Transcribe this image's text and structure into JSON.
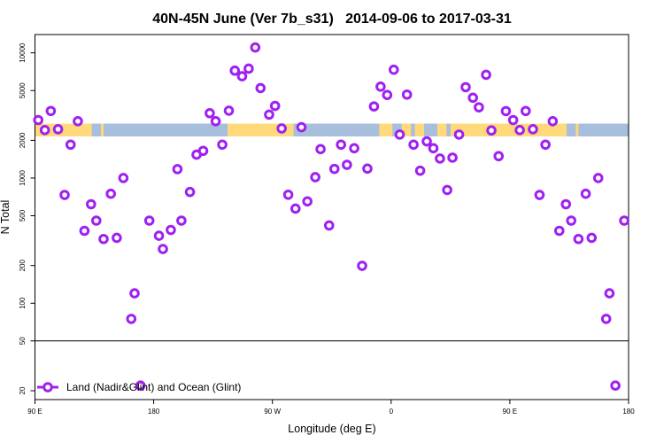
{
  "chart_data": {
    "type": "scatter",
    "title": "40N-45N June (Ver 7b_s31)   2014-09-06 to 2017-03-31",
    "xlabel": "Longitude (deg E)",
    "ylabel": "N Total",
    "xlim": [
      90,
      540
    ],
    "x_wrap_period": 360,
    "x_wrap_note": "points with longitude below 180 are repeated at longitude+360",
    "ylim": [
      17,
      14000
    ],
    "yscale": "log",
    "grid": false,
    "reference_line_y": 50,
    "xticks": [
      {
        "value": 90,
        "label": "90 E"
      },
      {
        "value": 180,
        "label": "180"
      },
      {
        "value": 270,
        "label": "90 W"
      },
      {
        "value": 360,
        "label": "0"
      },
      {
        "value": 450,
        "label": "90 E"
      },
      {
        "value": 540,
        "label": "180"
      }
    ],
    "yticks": [
      {
        "value": 10000,
        "label": "10000"
      },
      {
        "value": 5000,
        "label": "5000"
      },
      {
        "value": 2000,
        "label": "2000"
      },
      {
        "value": 1000,
        "label": "1000"
      },
      {
        "value": 500,
        "label": "500"
      },
      {
        "value": 200,
        "label": "200"
      },
      {
        "value": 100,
        "label": "100"
      },
      {
        "value": 50,
        "label": "50"
      },
      {
        "value": 20,
        "label": "20"
      }
    ],
    "legend": {
      "position": "bottom-left",
      "label": "Land (Nadir&Glint) and Ocean (Glint)"
    },
    "series_color": "#A020F0",
    "land_color": "#FFD97A",
    "ocean_color": "#A7BEDC",
    "surface_band_value_range": [
      2150,
      2720
    ],
    "surface_band": [
      [
        90,
        133,
        "land"
      ],
      [
        133,
        140,
        "ocean"
      ],
      [
        140,
        142,
        "land"
      ],
      [
        142,
        236,
        "ocean"
      ],
      [
        236,
        286,
        "land"
      ],
      [
        286,
        351,
        "ocean"
      ],
      [
        351,
        361,
        "land"
      ],
      [
        361,
        368,
        "ocean"
      ],
      [
        368,
        375,
        "land"
      ],
      [
        375,
        378,
        "ocean"
      ],
      [
        378,
        385,
        "land"
      ],
      [
        385,
        395,
        "ocean"
      ],
      [
        395,
        402,
        "land"
      ],
      [
        402,
        405,
        "ocean"
      ],
      [
        405,
        493,
        "land"
      ],
      [
        493,
        500,
        "ocean"
      ],
      [
        500,
        502,
        "land"
      ],
      [
        502,
        540,
        "ocean"
      ]
    ],
    "points": [
      [
        92.5,
        2905
      ],
      [
        97.5,
        2416
      ],
      [
        102,
        3434
      ],
      [
        107.5,
        2455
      ],
      [
        112.5,
        733
      ],
      [
        117,
        1848
      ],
      [
        122.5,
        2844
      ],
      [
        127.5,
        379
      ],
      [
        132.5,
        618
      ],
      [
        136.5,
        457
      ],
      [
        142,
        326
      ],
      [
        147.5,
        749
      ],
      [
        152,
        333
      ],
      [
        157,
        1000
      ],
      [
        163,
        75
      ],
      [
        165.5,
        120
      ],
      [
        170,
        22
      ],
      [
        176.7,
        457
      ],
      [
        184,
        346
      ],
      [
        187,
        271
      ],
      [
        193,
        385
      ],
      [
        198,
        1178
      ],
      [
        201,
        457
      ],
      [
        207.5,
        774
      ],
      [
        212.5,
        1537
      ],
      [
        217.5,
        1649
      ],
      [
        222.5,
        3297
      ],
      [
        227,
        2844
      ],
      [
        232,
        1848
      ],
      [
        237,
        3450
      ],
      [
        241.5,
        7210
      ],
      [
        247,
        6500
      ],
      [
        252,
        7480
      ],
      [
        257,
        11040
      ],
      [
        261,
        5230
      ],
      [
        267.5,
        3210
      ],
      [
        272,
        3770
      ],
      [
        277,
        2490
      ],
      [
        282,
        736
      ],
      [
        287.5,
        570
      ],
      [
        292,
        2548
      ],
      [
        296.5,
        651
      ],
      [
        302.5,
        1016
      ],
      [
        306.5,
        1702
      ],
      [
        313,
        418
      ],
      [
        317,
        1183
      ],
      [
        322,
        1848
      ],
      [
        326.5,
        1276
      ],
      [
        332,
        1730
      ],
      [
        338,
        199
      ],
      [
        342,
        1189
      ],
      [
        347,
        3733
      ],
      [
        352,
        5370
      ],
      [
        357,
        4610
      ],
      [
        362,
        7330
      ],
      [
        366.5,
        2225
      ],
      [
        372,
        4640
      ],
      [
        377,
        1848
      ],
      [
        382,
        1145
      ],
      [
        387,
        1963
      ],
      [
        392,
        1730
      ],
      [
        397,
        1432
      ],
      [
        402.5,
        803
      ],
      [
        406.5,
        1455
      ],
      [
        411.5,
        2225
      ],
      [
        416.5,
        5320
      ],
      [
        422,
        4380
      ],
      [
        426.5,
        3670
      ],
      [
        432,
        6680
      ],
      [
        436,
        2400
      ],
      [
        441.5,
        1496
      ],
      [
        447,
        3427
      ]
    ]
  }
}
